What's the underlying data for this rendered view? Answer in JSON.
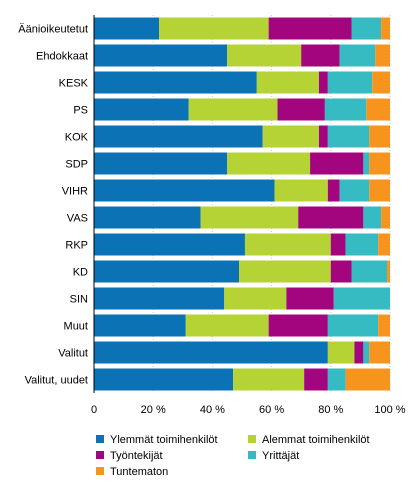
{
  "chart_data": {
    "type": "bar",
    "orientation": "horizontal",
    "stacked": true,
    "title": "",
    "xlabel": "",
    "ylabel": "",
    "xlim": [
      0,
      100
    ],
    "grid": true,
    "legend_position": "bottom",
    "x_ticks": [
      "0",
      "20 %",
      "40 %",
      "60 %",
      "80 %",
      "100 %"
    ],
    "categories": [
      "Äänioikeutetut",
      "Ehdokkaat",
      "KESK",
      "PS",
      "KOK",
      "SDP",
      "VIHR",
      "VAS",
      "RKP",
      "KD",
      "SIN",
      "Muut",
      "Valitut",
      "Valitut, uudet"
    ],
    "series": [
      {
        "name": "Ylemmät toimihenkilöt",
        "color": "#0b72b5",
        "values": [
          22,
          45,
          55,
          32,
          57,
          45,
          61,
          36,
          51,
          49,
          44,
          31,
          79,
          47
        ]
      },
      {
        "name": "Alemmat toimihenkilöt",
        "color": "#b5d334",
        "values": [
          37,
          25,
          21,
          30,
          19,
          28,
          18,
          33,
          29,
          31,
          21,
          28,
          9,
          24
        ]
      },
      {
        "name": "Työntekijät",
        "color": "#a3057f",
        "values": [
          28,
          13,
          3,
          16,
          3,
          18,
          4,
          22,
          5,
          7,
          16,
          20,
          3,
          8
        ]
      },
      {
        "name": "Yrittäjät",
        "color": "#35bbc1",
        "values": [
          10,
          12,
          15,
          14,
          14,
          2,
          10,
          6,
          11,
          12,
          19,
          17,
          2,
          6
        ]
      },
      {
        "name": "Tuntematon",
        "color": "#f7941d",
        "values": [
          3,
          5,
          6,
          8,
          7,
          7,
          7,
          3,
          4,
          1,
          0,
          4,
          7,
          15
        ]
      }
    ]
  }
}
